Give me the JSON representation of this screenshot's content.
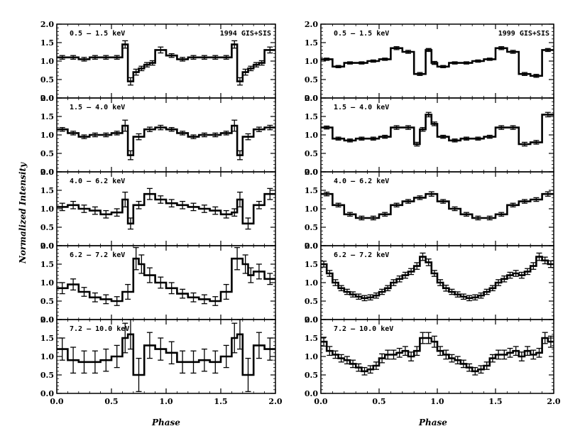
{
  "figure": {
    "ylabel": "Normalized Intensity",
    "xlabel": "Phase",
    "xticks": [
      "0.0",
      "0.5",
      "1.0",
      "1.5",
      "2.0"
    ],
    "yticks": [
      "0.0",
      "0.5",
      "1.0",
      "1.5",
      "2.0"
    ]
  },
  "chart_data": [
    {
      "type": "line",
      "column": "left",
      "row": 0,
      "band": "0.5 – 1.5 keV",
      "corner": "1994 GIS+SIS",
      "xlim": [
        0,
        2
      ],
      "ylim": [
        0,
        2
      ],
      "x": [
        0.0,
        0.1,
        0.2,
        0.3,
        0.4,
        0.5,
        0.6,
        0.65,
        0.7,
        0.75,
        0.8,
        0.85,
        0.9,
        1.0,
        1.1,
        1.2,
        1.3,
        1.4,
        1.5,
        1.6,
        1.65,
        1.7,
        1.75,
        1.8,
        1.85,
        1.9
      ],
      "y": [
        1.1,
        1.1,
        1.05,
        1.1,
        1.1,
        1.1,
        1.45,
        0.45,
        0.7,
        0.8,
        0.9,
        0.95,
        1.3,
        1.15,
        1.05,
        1.1,
        1.1,
        1.1,
        1.1,
        1.45,
        0.45,
        0.7,
        0.8,
        0.9,
        0.95,
        1.3
      ],
      "err": [
        0.05,
        0.05,
        0.05,
        0.05,
        0.05,
        0.05,
        0.1,
        0.1,
        0.08,
        0.06,
        0.06,
        0.06,
        0.08,
        0.05,
        0.05,
        0.05,
        0.05,
        0.05,
        0.05,
        0.1,
        0.1,
        0.08,
        0.06,
        0.06,
        0.06,
        0.08
      ]
    },
    {
      "type": "line",
      "column": "left",
      "row": 1,
      "band": "1.5 – 4.0 keV",
      "corner": "",
      "xlim": [
        0,
        2
      ],
      "ylim": [
        0,
        2
      ],
      "x": [
        0.0,
        0.1,
        0.2,
        0.3,
        0.4,
        0.5,
        0.6,
        0.65,
        0.7,
        0.8,
        0.9,
        1.0,
        1.1,
        1.2,
        1.3,
        1.4,
        1.5,
        1.6,
        1.65,
        1.7,
        1.8,
        1.9
      ],
      "y": [
        1.15,
        1.05,
        0.95,
        1.0,
        1.0,
        1.05,
        1.25,
        0.45,
        0.95,
        1.15,
        1.2,
        1.15,
        1.05,
        0.95,
        1.0,
        1.0,
        1.05,
        1.25,
        0.45,
        0.95,
        1.15,
        1.2
      ],
      "err": [
        0.05,
        0.05,
        0.05,
        0.05,
        0.05,
        0.05,
        0.15,
        0.12,
        0.08,
        0.06,
        0.06,
        0.05,
        0.05,
        0.05,
        0.05,
        0.05,
        0.05,
        0.15,
        0.12,
        0.08,
        0.06,
        0.06
      ]
    },
    {
      "type": "line",
      "column": "left",
      "row": 2,
      "band": "4.0 – 6.2 keV",
      "corner": "",
      "xlim": [
        0,
        2
      ],
      "ylim": [
        0,
        2
      ],
      "x": [
        0.0,
        0.1,
        0.2,
        0.3,
        0.4,
        0.5,
        0.6,
        0.65,
        0.7,
        0.8,
        0.9,
        1.0,
        1.1,
        1.2,
        1.3,
        1.4,
        1.5,
        1.6,
        1.65,
        1.7,
        1.8,
        1.9
      ],
      "y": [
        1.05,
        1.1,
        1.0,
        0.95,
        0.85,
        0.9,
        1.25,
        0.6,
        1.1,
        1.4,
        1.25,
        1.15,
        1.1,
        1.05,
        1.0,
        0.95,
        0.85,
        0.9,
        1.25,
        0.6,
        1.1,
        1.4
      ],
      "err": [
        0.1,
        0.1,
        0.1,
        0.1,
        0.1,
        0.1,
        0.2,
        0.15,
        0.1,
        0.15,
        0.1,
        0.1,
        0.1,
        0.1,
        0.1,
        0.1,
        0.1,
        0.1,
        0.2,
        0.15,
        0.1,
        0.15
      ]
    },
    {
      "type": "line",
      "column": "left",
      "row": 3,
      "band": "6.2 – 7.2 keV",
      "corner": "",
      "xlim": [
        0,
        2
      ],
      "ylim": [
        0,
        2
      ],
      "x": [
        0.0,
        0.1,
        0.2,
        0.3,
        0.4,
        0.5,
        0.6,
        0.7,
        0.75,
        0.8,
        0.9,
        1.0,
        1.1,
        1.2,
        1.3,
        1.4,
        1.5,
        1.6,
        1.7,
        1.75,
        1.8,
        1.9
      ],
      "y": [
        0.85,
        0.95,
        0.75,
        0.6,
        0.55,
        0.5,
        0.75,
        1.65,
        1.5,
        1.2,
        1.0,
        0.85,
        0.7,
        0.6,
        0.55,
        0.5,
        0.75,
        1.65,
        1.5,
        1.2,
        1.3,
        1.1
      ],
      "err": [
        0.15,
        0.15,
        0.12,
        0.12,
        0.12,
        0.12,
        0.2,
        0.3,
        0.25,
        0.2,
        0.15,
        0.15,
        0.12,
        0.12,
        0.12,
        0.12,
        0.2,
        0.3,
        0.25,
        0.2,
        0.2,
        0.15
      ]
    },
    {
      "type": "line",
      "column": "left",
      "row": 4,
      "band": "7.2 – 10.0 keV",
      "corner": "",
      "xlim": [
        0,
        2
      ],
      "ylim": [
        0,
        2
      ],
      "x": [
        0.0,
        0.1,
        0.2,
        0.3,
        0.4,
        0.5,
        0.6,
        0.65,
        0.7,
        0.8,
        0.9,
        1.0,
        1.1,
        1.2,
        1.3,
        1.4,
        1.5,
        1.6,
        1.65,
        1.7,
        1.8,
        1.9
      ],
      "y": [
        1.2,
        0.9,
        0.85,
        0.85,
        0.9,
        1.0,
        1.5,
        1.6,
        0.5,
        1.3,
        1.2,
        1.1,
        0.85,
        0.85,
        0.9,
        0.85,
        1.0,
        1.5,
        1.6,
        0.5,
        1.3,
        1.2
      ],
      "err": [
        0.3,
        0.35,
        0.3,
        0.3,
        0.3,
        0.3,
        0.4,
        0.4,
        0.45,
        0.35,
        0.3,
        0.3,
        0.3,
        0.3,
        0.3,
        0.3,
        0.3,
        0.4,
        0.4,
        0.45,
        0.35,
        0.3
      ]
    },
    {
      "type": "line",
      "column": "right",
      "row": 0,
      "band": "0.5 – 1.5 keV",
      "corner": "1999 GIS+SIS",
      "xlim": [
        0,
        2
      ],
      "ylim": [
        0,
        2
      ],
      "x": [
        0.0,
        0.1,
        0.2,
        0.3,
        0.4,
        0.5,
        0.6,
        0.7,
        0.8,
        0.9,
        0.95,
        1.0,
        1.1,
        1.2,
        1.3,
        1.4,
        1.5,
        1.6,
        1.7,
        1.8,
        1.9
      ],
      "y": [
        1.05,
        0.85,
        0.95,
        0.95,
        1.0,
        1.05,
        1.35,
        1.25,
        0.65,
        1.3,
        0.95,
        0.85,
        0.95,
        0.95,
        1.0,
        1.05,
        1.35,
        1.25,
        0.65,
        0.6,
        1.3
      ],
      "err": [
        0.03,
        0.03,
        0.03,
        0.03,
        0.03,
        0.03,
        0.04,
        0.04,
        0.04,
        0.04,
        0.04,
        0.03,
        0.03,
        0.03,
        0.03,
        0.03,
        0.04,
        0.04,
        0.04,
        0.04,
        0.04
      ]
    },
    {
      "type": "line",
      "column": "right",
      "row": 1,
      "band": "1.5 – 4.0 keV",
      "corner": "",
      "xlim": [
        0,
        2
      ],
      "ylim": [
        0,
        2
      ],
      "x": [
        0.0,
        0.1,
        0.2,
        0.3,
        0.4,
        0.5,
        0.6,
        0.7,
        0.8,
        0.85,
        0.9,
        0.95,
        1.0,
        1.1,
        1.2,
        1.3,
        1.4,
        1.5,
        1.6,
        1.7,
        1.8,
        1.9
      ],
      "y": [
        1.2,
        0.9,
        0.85,
        0.9,
        0.9,
        0.95,
        1.2,
        1.2,
        0.75,
        1.15,
        1.55,
        1.3,
        0.95,
        0.85,
        0.9,
        0.9,
        0.95,
        1.2,
        1.2,
        0.75,
        0.8,
        1.55
      ],
      "err": [
        0.04,
        0.04,
        0.04,
        0.04,
        0.04,
        0.04,
        0.05,
        0.05,
        0.05,
        0.05,
        0.06,
        0.05,
        0.04,
        0.04,
        0.04,
        0.04,
        0.04,
        0.05,
        0.05,
        0.05,
        0.05,
        0.06
      ]
    },
    {
      "type": "line",
      "column": "right",
      "row": 2,
      "band": "4.0 – 6.2 keV",
      "corner": "",
      "xlim": [
        0,
        2
      ],
      "ylim": [
        0,
        2
      ],
      "x": [
        0.0,
        0.1,
        0.2,
        0.3,
        0.4,
        0.5,
        0.6,
        0.7,
        0.8,
        0.9,
        1.0,
        1.1,
        1.2,
        1.3,
        1.4,
        1.5,
        1.6,
        1.7,
        1.8,
        1.9
      ],
      "y": [
        1.4,
        1.1,
        0.85,
        0.75,
        0.75,
        0.85,
        1.1,
        1.2,
        1.3,
        1.4,
        1.2,
        1.0,
        0.85,
        0.75,
        0.75,
        0.85,
        1.1,
        1.2,
        1.25,
        1.4
      ],
      "err": [
        0.05,
        0.05,
        0.05,
        0.05,
        0.05,
        0.05,
        0.05,
        0.05,
        0.05,
        0.06,
        0.05,
        0.05,
        0.05,
        0.05,
        0.05,
        0.05,
        0.05,
        0.05,
        0.05,
        0.06
      ]
    },
    {
      "type": "line",
      "column": "right",
      "row": 3,
      "band": "6.2 – 7.2 keV",
      "corner": "",
      "xlim": [
        0,
        2
      ],
      "ylim": [
        0,
        2
      ],
      "x": [
        0.0,
        0.05,
        0.1,
        0.15,
        0.2,
        0.25,
        0.3,
        0.35,
        0.4,
        0.45,
        0.5,
        0.55,
        0.6,
        0.65,
        0.7,
        0.75,
        0.8,
        0.85,
        0.9,
        0.95,
        1.0,
        1.05,
        1.1,
        1.15,
        1.2,
        1.25,
        1.3,
        1.35,
        1.4,
        1.45,
        1.5,
        1.55,
        1.6,
        1.65,
        1.7,
        1.75,
        1.8,
        1.85,
        1.9,
        1.95
      ],
      "y": [
        1.5,
        1.25,
        1.0,
        0.85,
        0.75,
        0.68,
        0.62,
        0.58,
        0.6,
        0.65,
        0.75,
        0.85,
        1.0,
        1.1,
        1.2,
        1.3,
        1.45,
        1.7,
        1.55,
        1.25,
        1.0,
        0.85,
        0.75,
        0.68,
        0.62,
        0.58,
        0.6,
        0.65,
        0.75,
        0.85,
        1.0,
        1.1,
        1.2,
        1.25,
        1.2,
        1.3,
        1.45,
        1.7,
        1.6,
        1.5
      ],
      "err": [
        0.08,
        0.08,
        0.08,
        0.07,
        0.07,
        0.07,
        0.07,
        0.07,
        0.07,
        0.07,
        0.07,
        0.07,
        0.08,
        0.08,
        0.08,
        0.08,
        0.09,
        0.1,
        0.09,
        0.08,
        0.08,
        0.08,
        0.07,
        0.07,
        0.07,
        0.07,
        0.07,
        0.07,
        0.07,
        0.07,
        0.08,
        0.08,
        0.08,
        0.08,
        0.08,
        0.08,
        0.09,
        0.1,
        0.09,
        0.09
      ]
    },
    {
      "type": "line",
      "column": "right",
      "row": 4,
      "band": "7.2 – 10.0 keV",
      "corner": "",
      "xlim": [
        0,
        2
      ],
      "ylim": [
        0,
        2
      ],
      "x": [
        0.0,
        0.05,
        0.1,
        0.15,
        0.2,
        0.25,
        0.3,
        0.35,
        0.4,
        0.45,
        0.5,
        0.55,
        0.6,
        0.65,
        0.7,
        0.75,
        0.8,
        0.85,
        0.9,
        0.95,
        1.0,
        1.05,
        1.1,
        1.15,
        1.2,
        1.25,
        1.3,
        1.35,
        1.4,
        1.45,
        1.5,
        1.55,
        1.6,
        1.65,
        1.7,
        1.75,
        1.8,
        1.85,
        1.9,
        1.95
      ],
      "y": [
        1.4,
        1.15,
        1.05,
        0.95,
        0.9,
        0.8,
        0.7,
        0.6,
        0.65,
        0.75,
        0.95,
        1.05,
        1.05,
        1.1,
        1.15,
        1.0,
        1.15,
        1.5,
        1.5,
        1.4,
        1.15,
        1.05,
        0.95,
        0.9,
        0.8,
        0.7,
        0.6,
        0.65,
        0.75,
        0.95,
        1.05,
        1.05,
        1.1,
        1.15,
        1.0,
        1.15,
        1.05,
        1.1,
        1.5,
        1.4
      ],
      "err": [
        0.12,
        0.12,
        0.1,
        0.1,
        0.1,
        0.1,
        0.1,
        0.1,
        0.1,
        0.1,
        0.12,
        0.12,
        0.12,
        0.12,
        0.12,
        0.12,
        0.12,
        0.15,
        0.15,
        0.15,
        0.12,
        0.12,
        0.1,
        0.1,
        0.1,
        0.1,
        0.1,
        0.1,
        0.1,
        0.1,
        0.12,
        0.12,
        0.12,
        0.12,
        0.12,
        0.12,
        0.12,
        0.12,
        0.15,
        0.15
      ]
    }
  ]
}
